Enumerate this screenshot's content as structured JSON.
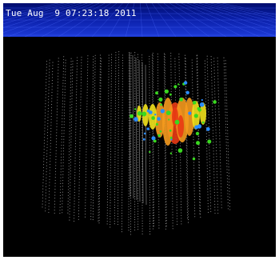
{
  "header": {
    "timestamp": "Tue Aug  9 07:23:18 2011"
  },
  "colors": {
    "background": "#000000",
    "header_gradient_top": "#000c6e",
    "header_gradient_bottom": "#1c3ad8",
    "grid_line": "#4f6cff",
    "dom_dot": "#d8d8d8",
    "hit_red": "#e83a14",
    "hit_orange": "#f59a1e",
    "hit_yellow": "#f2e21c",
    "hit_green": "#39d81f",
    "hit_blue": "#2a8cff"
  },
  "scene": {
    "description_icon": "detector-strings-event-display"
  }
}
